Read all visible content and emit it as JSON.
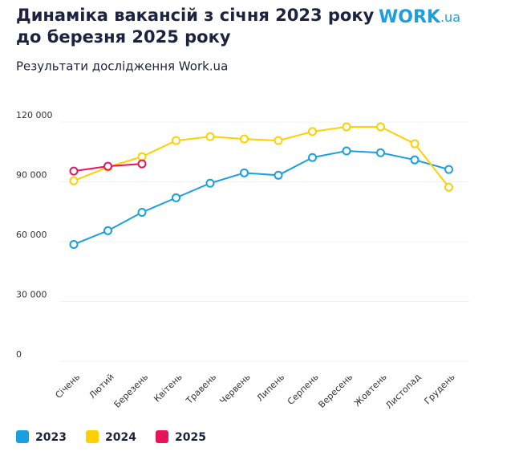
{
  "logo": {
    "main": "WORK",
    "suffix": ".ua"
  },
  "chart_data": {
    "type": "line",
    "title": [
      "Динаміка вакансій з січня 2023 року",
      "до березня 2025 року"
    ],
    "subtitle": "Результати дослідження Work.ua",
    "categories": [
      "Січень",
      "Лютий",
      "Березень",
      "Квітень",
      "Травень",
      "Червень",
      "Липень",
      "Серпень",
      "Вересень",
      "Жовтень",
      "Листопад",
      "Грудень"
    ],
    "series": [
      {
        "name": "2023",
        "color": "#1a9fe0",
        "values": [
          58600,
          65500,
          74700,
          82000,
          89300,
          94500,
          93300,
          102200,
          105500,
          104600,
          101000,
          96200
        ]
      },
      {
        "name": "2024",
        "color": "#ffd000",
        "values": [
          90500,
          97400,
          102600,
          110700,
          112700,
          111500,
          110700,
          115200,
          117600,
          117600,
          109100,
          87300
        ]
      },
      {
        "name": "2025",
        "color": "#e8145a",
        "values": [
          95400,
          97800,
          99000,
          null,
          null,
          null,
          null,
          null,
          null,
          null,
          null,
          null
        ]
      }
    ],
    "ylim": [
      0,
      120000
    ],
    "yticks": [
      0,
      {
        "value": 30000,
        "label": "30 000"
      },
      {
        "value": 60000,
        "label": "60 000"
      },
      {
        "value": 90000,
        "label": "90 000"
      },
      {
        "value": 120000,
        "label": "120 000"
      }
    ],
    "grid": true,
    "legend": "bottom-left"
  }
}
